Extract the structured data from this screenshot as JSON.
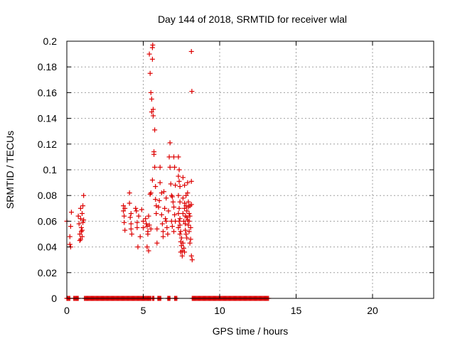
{
  "chart_data": {
    "type": "scatter",
    "title": "Day 144 of 2018, SRMTID for receiver wlal",
    "xlabel": "GPS time / hours",
    "ylabel": "SRMTID / TECUs",
    "xlim": [
      0,
      24
    ],
    "ylim": [
      0,
      0.2
    ],
    "x_ticks": [
      0,
      5,
      10,
      15,
      20
    ],
    "x_tick_labels": [
      "0",
      "5",
      "10",
      "15",
      "20"
    ],
    "y_ticks": [
      0,
      0.02,
      0.04,
      0.06,
      0.08,
      0.1,
      0.12,
      0.14,
      0.16,
      0.18,
      0.2
    ],
    "y_tick_labels": [
      "0",
      "0.02",
      "0.04",
      "0.06",
      "0.08",
      "0.1",
      "0.12",
      "0.14",
      "0.16",
      "0.18",
      "0.2"
    ],
    "grid": true,
    "marker": "+",
    "series": [
      {
        "name": "SRMTID",
        "color": "#dd0000",
        "points": [
          [
            0.0,
            0.06
          ],
          [
            0.2,
            0.042
          ],
          [
            0.2,
            0.048
          ],
          [
            0.25,
            0.056
          ],
          [
            0.3,
            0.067
          ],
          [
            0.25,
            0.04
          ],
          [
            0.75,
            0.064
          ],
          [
            0.8,
            0.058
          ],
          [
            0.85,
            0.05
          ],
          [
            0.85,
            0.045
          ],
          [
            0.9,
            0.07
          ],
          [
            0.9,
            0.062
          ],
          [
            0.95,
            0.055
          ],
          [
            0.95,
            0.052
          ],
          [
            1.0,
            0.048
          ],
          [
            1.0,
            0.066
          ],
          [
            1.05,
            0.072
          ],
          [
            1.05,
            0.059
          ],
          [
            1.1,
            0.061
          ],
          [
            1.1,
            0.08
          ],
          [
            1.0,
            0.053
          ],
          [
            0.9,
            0.046
          ],
          [
            3.7,
            0.072
          ],
          [
            3.7,
            0.068
          ],
          [
            3.75,
            0.064
          ],
          [
            3.75,
            0.059
          ],
          [
            3.8,
            0.053
          ],
          [
            3.8,
            0.07
          ],
          [
            4.1,
            0.082
          ],
          [
            4.1,
            0.074
          ],
          [
            4.15,
            0.063
          ],
          [
            4.2,
            0.058
          ],
          [
            4.2,
            0.054
          ],
          [
            4.25,
            0.05
          ],
          [
            4.2,
            0.066
          ],
          [
            4.5,
            0.07
          ],
          [
            4.55,
            0.068
          ],
          [
            4.6,
            0.059
          ],
          [
            4.6,
            0.055
          ],
          [
            4.65,
            0.04
          ],
          [
            4.7,
            0.064
          ],
          [
            4.8,
            0.048
          ],
          [
            4.9,
            0.069
          ],
          [
            5.0,
            0.06
          ],
          [
            5.0,
            0.055
          ],
          [
            5.15,
            0.062
          ],
          [
            5.2,
            0.058
          ],
          [
            5.25,
            0.056
          ],
          [
            5.25,
            0.04
          ],
          [
            5.3,
            0.052
          ],
          [
            5.3,
            0.05
          ],
          [
            5.35,
            0.037
          ],
          [
            5.35,
            0.064
          ],
          [
            5.4,
            0.057
          ],
          [
            5.45,
            0.081
          ],
          [
            5.45,
            0.175
          ],
          [
            5.4,
            0.19
          ],
          [
            5.5,
            0.082
          ],
          [
            5.5,
            0.16
          ],
          [
            5.55,
            0.155
          ],
          [
            5.55,
            0.145
          ],
          [
            5.6,
            0.195
          ],
          [
            5.6,
            0.186
          ],
          [
            5.62,
            0.197
          ],
          [
            5.65,
            0.147
          ],
          [
            5.65,
            0.142
          ],
          [
            5.7,
            0.114
          ],
          [
            5.7,
            0.112
          ],
          [
            5.75,
            0.131
          ],
          [
            5.75,
            0.102
          ],
          [
            5.8,
            0.087
          ],
          [
            5.8,
            0.077
          ],
          [
            5.85,
            0.072
          ],
          [
            5.85,
            0.066
          ],
          [
            5.9,
            0.054
          ],
          [
            5.9,
            0.043
          ],
          [
            5.6,
            0.092
          ],
          [
            5.5,
            0.054
          ],
          [
            6.0,
            0.071
          ],
          [
            6.05,
            0.076
          ],
          [
            6.1,
            0.102
          ],
          [
            6.1,
            0.09
          ],
          [
            6.2,
            0.082
          ],
          [
            6.2,
            0.065
          ],
          [
            6.25,
            0.058
          ],
          [
            6.3,
            0.052
          ],
          [
            6.3,
            0.048
          ],
          [
            6.35,
            0.083
          ],
          [
            6.4,
            0.07
          ],
          [
            6.45,
            0.062
          ],
          [
            6.5,
            0.078
          ],
          [
            6.5,
            0.06
          ],
          [
            6.55,
            0.055
          ],
          [
            6.6,
            0.05
          ],
          [
            6.65,
            0.068
          ],
          [
            6.7,
            0.11
          ],
          [
            6.75,
            0.121
          ],
          [
            6.75,
            0.102
          ],
          [
            6.8,
            0.089
          ],
          [
            6.85,
            0.08
          ],
          [
            6.9,
            0.079
          ],
          [
            6.95,
            0.075
          ],
          [
            6.85,
            0.06
          ],
          [
            6.9,
            0.056
          ],
          [
            7.0,
            0.11
          ],
          [
            7.05,
            0.102
          ],
          [
            7.1,
            0.088
          ],
          [
            7.0,
            0.071
          ],
          [
            7.05,
            0.065
          ],
          [
            7.1,
            0.06
          ],
          [
            7.0,
            0.052
          ],
          [
            7.3,
            0.11
          ],
          [
            7.35,
            0.1
          ],
          [
            7.3,
            0.095
          ],
          [
            7.35,
            0.091
          ],
          [
            7.4,
            0.087
          ],
          [
            7.3,
            0.08
          ],
          [
            7.4,
            0.075
          ],
          [
            7.35,
            0.07
          ],
          [
            7.3,
            0.066
          ],
          [
            7.4,
            0.062
          ],
          [
            7.35,
            0.06
          ],
          [
            7.4,
            0.057
          ],
          [
            7.3,
            0.055
          ],
          [
            7.45,
            0.052
          ],
          [
            7.4,
            0.05
          ],
          [
            7.5,
            0.047
          ],
          [
            7.45,
            0.044
          ],
          [
            7.5,
            0.041
          ],
          [
            7.55,
            0.037
          ],
          [
            7.55,
            0.033
          ],
          [
            7.45,
            0.036
          ],
          [
            7.6,
            0.094
          ],
          [
            7.6,
            0.078
          ],
          [
            7.6,
            0.066
          ],
          [
            7.65,
            0.06
          ],
          [
            7.7,
            0.088
          ],
          [
            7.7,
            0.074
          ],
          [
            7.7,
            0.07
          ],
          [
            7.75,
            0.064
          ],
          [
            7.75,
            0.058
          ],
          [
            7.75,
            0.053
          ],
          [
            7.8,
            0.08
          ],
          [
            7.8,
            0.072
          ],
          [
            7.85,
            0.068
          ],
          [
            7.85,
            0.063
          ],
          [
            7.8,
            0.05
          ],
          [
            7.85,
            0.047
          ],
          [
            7.9,
            0.09
          ],
          [
            7.9,
            0.082
          ],
          [
            7.9,
            0.061
          ],
          [
            7.95,
            0.075
          ],
          [
            7.95,
            0.071
          ],
          [
            7.95,
            0.057
          ],
          [
            8.0,
            0.066
          ],
          [
            8.0,
            0.06
          ],
          [
            8.05,
            0.072
          ],
          [
            8.05,
            0.064
          ],
          [
            8.0,
            0.052
          ],
          [
            8.1,
            0.055
          ],
          [
            8.1,
            0.046
          ],
          [
            8.05,
            0.043
          ],
          [
            8.15,
            0.091
          ],
          [
            8.15,
            0.073
          ],
          [
            8.15,
            0.033
          ],
          [
            8.2,
            0.03
          ],
          [
            8.15,
            0.192
          ],
          [
            8.18,
            0.161
          ],
          [
            7.6,
            0.043
          ],
          [
            7.65,
            0.039
          ],
          [
            7.7,
            0.036
          ]
        ]
      },
      {
        "name": "SRMTID zero values",
        "color": "#dd0000",
        "x_ranges": [
          [
            0.0,
            0.2
          ],
          [
            0.45,
            0.75
          ],
          [
            1.15,
            3.5
          ],
          [
            3.55,
            4.0
          ],
          [
            4.05,
            4.5
          ],
          [
            4.55,
            5.25
          ],
          [
            5.3,
            5.5
          ],
          [
            5.6,
            5.7
          ],
          [
            5.95,
            6.15
          ],
          [
            6.6,
            6.75
          ],
          [
            7.05,
            7.2
          ],
          [
            8.2,
            13.2
          ]
        ],
        "y": 0
      }
    ]
  }
}
